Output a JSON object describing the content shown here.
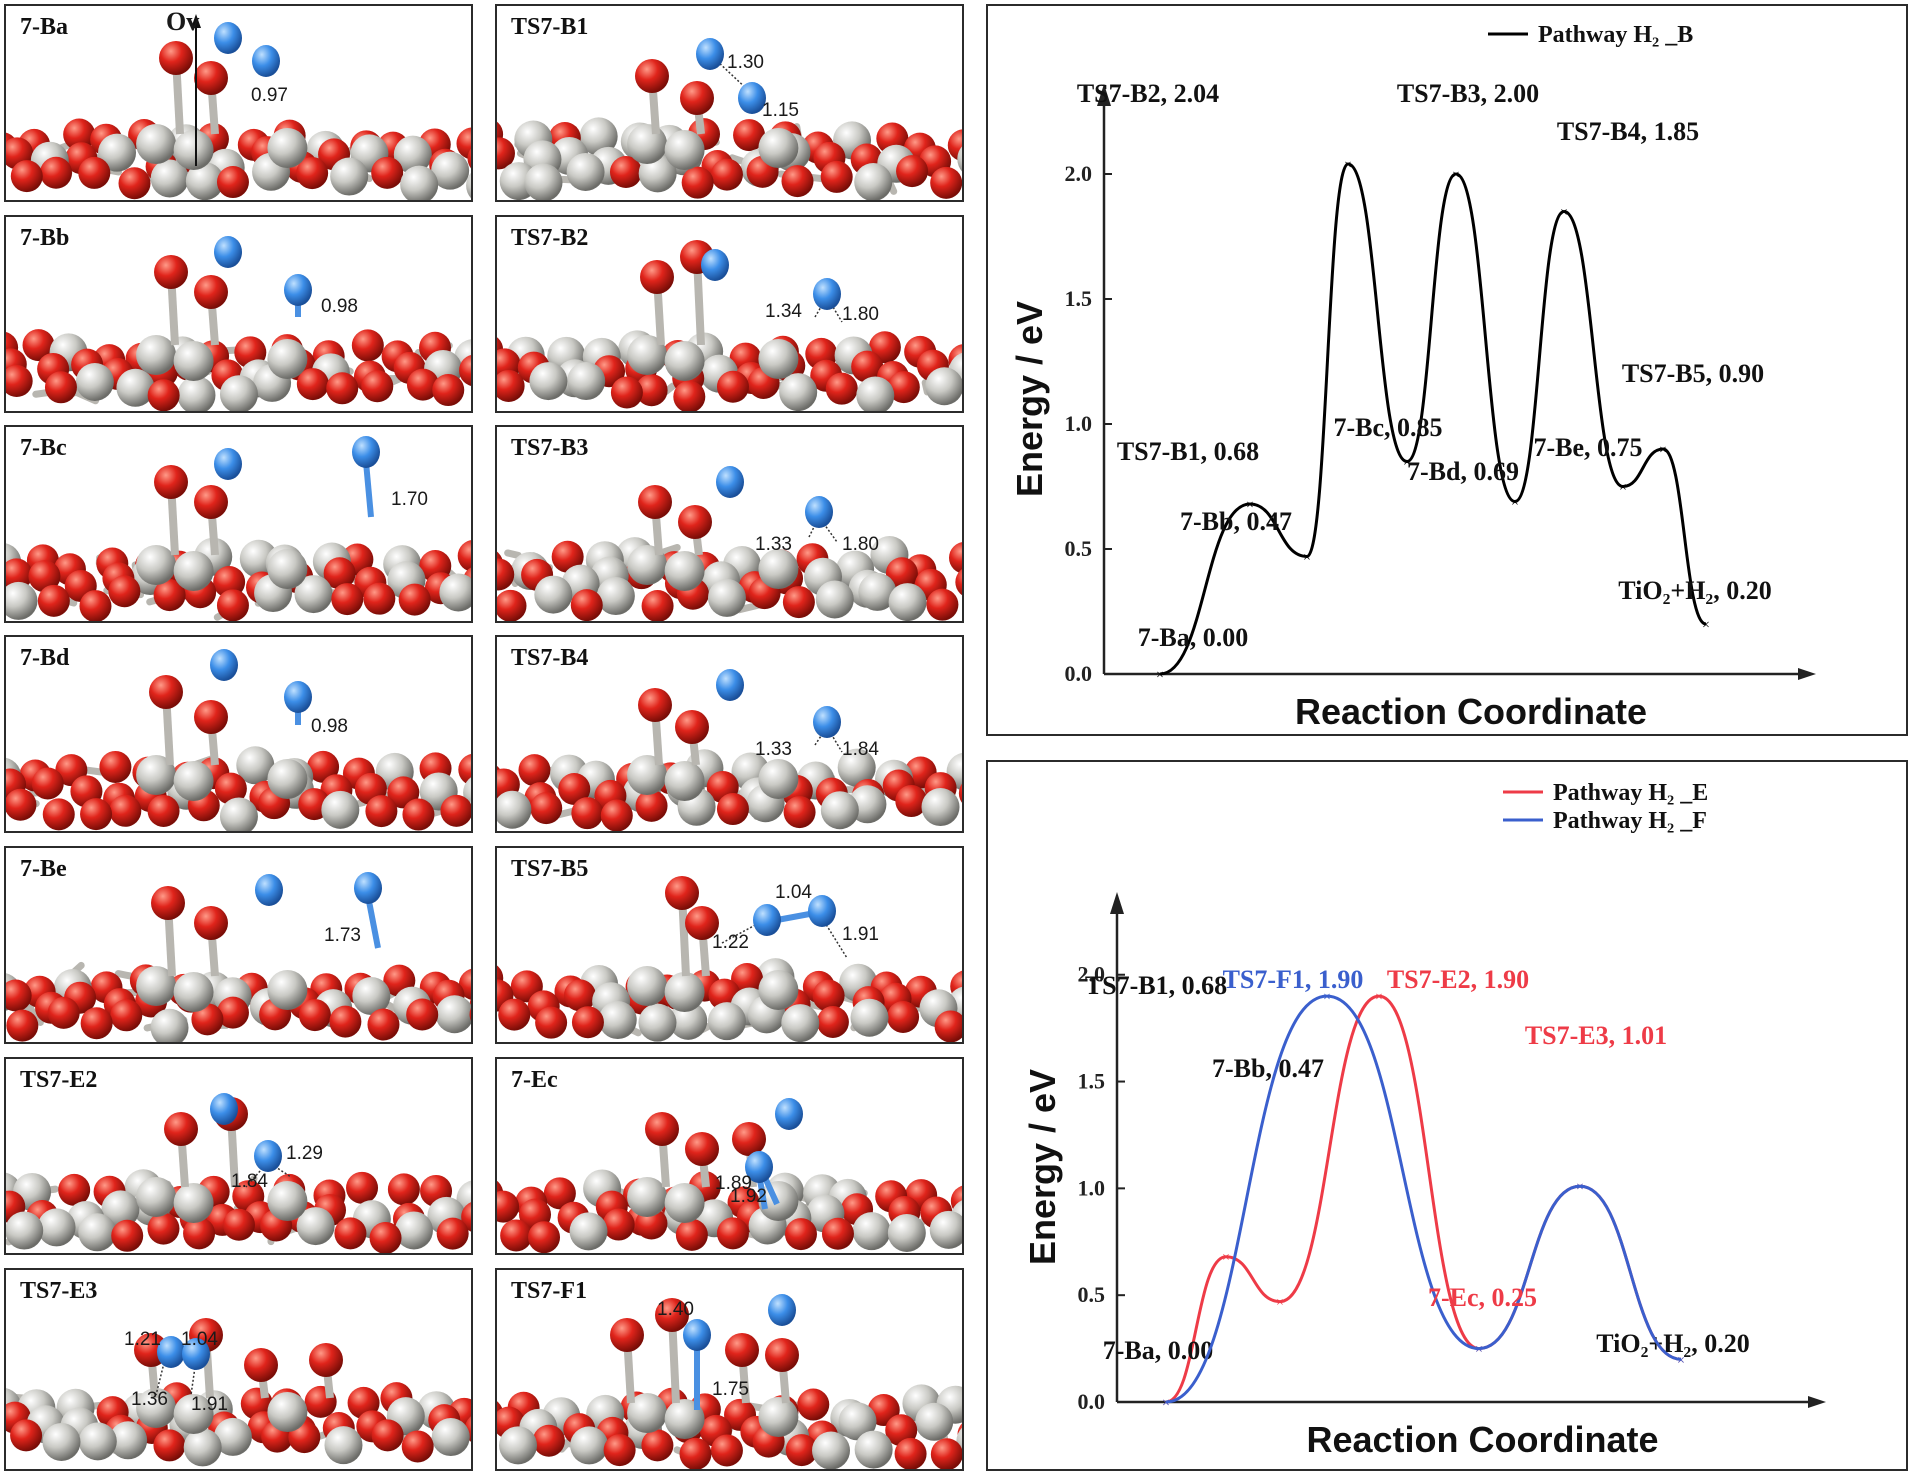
{
  "structures": [
    {
      "label": "7-Ba",
      "annotations": [
        {
          "text": "0.97"
        },
        {
          "text": "Ov"
        }
      ]
    },
    {
      "label": "TS7-B1",
      "annotations": [
        {
          "text": "1.30"
        },
        {
          "text": "1.15"
        }
      ]
    },
    {
      "label": "7-Bb",
      "annotations": [
        {
          "text": "0.98"
        }
      ]
    },
    {
      "label": "TS7-B2",
      "annotations": [
        {
          "text": "1.34"
        },
        {
          "text": "1.80"
        }
      ]
    },
    {
      "label": "7-Bc",
      "annotations": [
        {
          "text": "1.70"
        }
      ]
    },
    {
      "label": "TS7-B3",
      "annotations": [
        {
          "text": "1.33"
        },
        {
          "text": "1.80"
        }
      ]
    },
    {
      "label": "7-Bd",
      "annotations": [
        {
          "text": "0.98"
        }
      ]
    },
    {
      "label": "TS7-B4",
      "annotations": [
        {
          "text": "1.33"
        },
        {
          "text": "1.84"
        }
      ]
    },
    {
      "label": "7-Be",
      "annotations": [
        {
          "text": "1.73"
        }
      ]
    },
    {
      "label": "TS7-B5",
      "annotations": [
        {
          "text": "1.22"
        },
        {
          "text": "1.04"
        },
        {
          "text": "1.91"
        }
      ]
    },
    {
      "label": "TS7-E2",
      "annotations": [
        {
          "text": "1.29"
        },
        {
          "text": "1.84"
        }
      ]
    },
    {
      "label": "7-Ec",
      "annotations": [
        {
          "text": "1.89"
        },
        {
          "text": "1.92"
        }
      ]
    },
    {
      "label": "TS7-E3",
      "annotations": [
        {
          "text": "1.21"
        },
        {
          "text": "1.04"
        },
        {
          "text": "1.36"
        },
        {
          "text": "1.91"
        }
      ]
    },
    {
      "label": "TS7-F1",
      "annotations": [
        {
          "text": "1.40"
        },
        {
          "text": "1.75"
        }
      ]
    }
  ],
  "colors": {
    "oxygen": "#e0241b",
    "titanium": "#c9c9c4",
    "hydrogen": "#3c8ee8",
    "pathway_b": "#000000",
    "pathway_e": "#ee3b47",
    "pathway_f": "#3a5fcd"
  },
  "chart_data": [
    {
      "type": "line",
      "xlabel": "Reaction Coordinate",
      "ylabel": "Energy / eV",
      "ylim": [
        0,
        2.2
      ],
      "yticks": [
        "0.0",
        "0.5",
        "1.0",
        "1.5",
        "2.0"
      ],
      "grid": false,
      "legend": "top-right",
      "series": [
        {
          "name": "Pathway H₂ _B",
          "color": "#000000",
          "points": [
            {
              "label": "7-Ba, 0.00",
              "y": 0.0
            },
            {
              "label": "TS7-B1, 0.68",
              "y": 0.68
            },
            {
              "label": "7-Bb, 0.47",
              "y": 0.47
            },
            {
              "label": "TS7-B2, 2.04",
              "y": 2.04
            },
            {
              "label": "7-Bc, 0.85",
              "y": 0.85
            },
            {
              "label": "TS7-B3, 2.00",
              "y": 2.0
            },
            {
              "label": "7-Bd, 0.69",
              "y": 0.69
            },
            {
              "label": "TS7-B4, 1.85",
              "y": 1.85
            },
            {
              "label": "7-Be, 0.75",
              "y": 0.75
            },
            {
              "label": "TS7-B5, 0.90",
              "y": 0.9
            },
            {
              "label": "TiO₂+H₂, 0.20",
              "y": 0.2
            }
          ]
        }
      ]
    },
    {
      "type": "line",
      "xlabel": "Reaction Coordinate",
      "ylabel": "Energy / eV",
      "ylim": [
        0,
        2.2
      ],
      "yticks": [
        "0.0",
        "0.5",
        "1.0",
        "1.5",
        "2.0"
      ],
      "grid": false,
      "legend": "top-right",
      "series": [
        {
          "name": "Pathway H₂ _E",
          "color": "#ee3b47",
          "points": [
            {
              "label": "7-Ba, 0.00",
              "y": 0.0
            },
            {
              "label": "TS7-B1, 0.68",
              "y": 0.68
            },
            {
              "label": "7-Bb, 0.47",
              "y": 0.47
            },
            {
              "label": "TS7-E2, 1.90",
              "y": 1.9
            },
            {
              "label": "7-Ec, 0.25",
              "y": 0.25
            },
            {
              "label": "TS7-E3, 1.01",
              "y": 1.01
            },
            {
              "label": "TiO₂+H₂, 0.20",
              "y": 0.2
            }
          ]
        },
        {
          "name": "Pathway H₂ _F",
          "color": "#3a5fcd",
          "points": [
            {
              "label": "7-Ba, 0.00",
              "y": 0.0
            },
            {
              "label": "TS7-F1, 1.90",
              "y": 1.9
            },
            {
              "label": "7-Ec, 0.25",
              "y": 0.25
            },
            {
              "label": "TS7-E3, 1.01",
              "y": 1.01
            },
            {
              "label": "TiO₂+H₂, 0.20",
              "y": 0.2
            }
          ]
        }
      ]
    }
  ]
}
